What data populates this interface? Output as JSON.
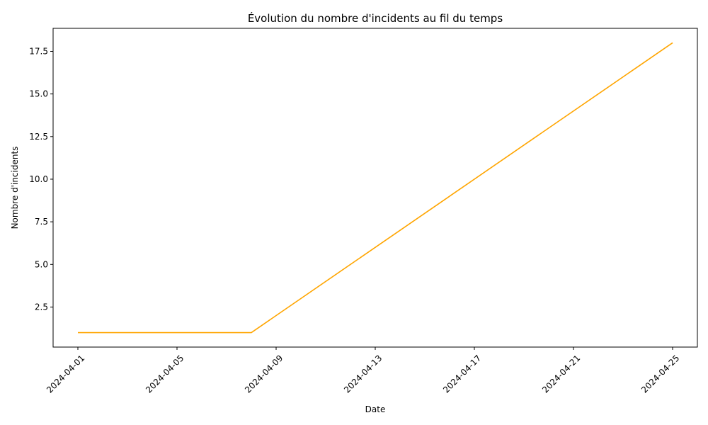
{
  "chart_data": {
    "type": "line",
    "title": "Évolution du nombre d'incidents au fil du temps",
    "xlabel": "Date",
    "ylabel": "Nombre d'incidents",
    "x": [
      "2024-04-01",
      "2024-04-08",
      "2024-04-25"
    ],
    "series": [
      {
        "values": [
          1,
          1,
          18
        ],
        "color": "#ffa500"
      }
    ],
    "xlim": [
      "2024-03-31",
      "2024-04-26"
    ],
    "ylim": [
      0.15,
      18.85
    ],
    "xticks": [
      "2024-04-01",
      "2024-04-05",
      "2024-04-09",
      "2024-04-13",
      "2024-04-17",
      "2024-04-21",
      "2024-04-25"
    ],
    "yticks": [
      "2.5",
      "5.0",
      "7.5",
      "10.0",
      "12.5",
      "15.0",
      "17.5"
    ],
    "grid": false,
    "legend": "none"
  }
}
